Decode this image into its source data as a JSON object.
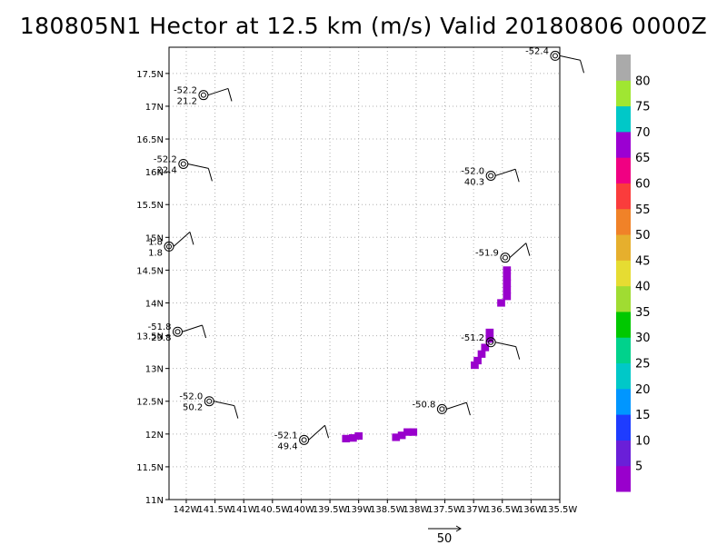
{
  "chart_data": {
    "type": "scatter",
    "title": "180805N1 Hector at 12.5 km (m/s) Valid 20180806 0000Z",
    "xlim": [
      -142.3,
      -135.5
    ],
    "ylim": [
      11.0,
      17.9
    ],
    "x_ticks": [
      -142,
      -141.5,
      -141,
      -140.5,
      -140,
      -139.5,
      -139,
      -138.5,
      -138,
      -137.5,
      -137,
      -136.5,
      -136,
      -135.5
    ],
    "x_tick_labels": [
      "142W",
      "141.5W",
      "141W",
      "140.5W",
      "140W",
      "139.5W",
      "139W",
      "138.5W",
      "138W",
      "137.5W",
      "137W",
      "136.5W",
      "136W",
      "135.5W"
    ],
    "y_ticks": [
      11,
      11.5,
      12,
      12.5,
      13,
      13.5,
      14,
      14.5,
      15,
      15.5,
      16,
      16.5,
      17,
      17.5
    ],
    "y_tick_labels": [
      "11N",
      "11.5N",
      "12N",
      "12.5N",
      "13N",
      "13.5N",
      "14N",
      "14.5N",
      "15N",
      "15.5N",
      "16N",
      "16.5N",
      "17N",
      "17.5N"
    ],
    "grid": true,
    "colorbar": {
      "labels": [
        "5",
        "10",
        "15",
        "20",
        "25",
        "30",
        "35",
        "40",
        "45",
        "50",
        "55",
        "60",
        "65",
        "70",
        "75",
        "80"
      ],
      "colors": [
        "#9900cc",
        "#6a1fd8",
        "#1e3cff",
        "#0096ff",
        "#00c8c8",
        "#00d28c",
        "#00c800",
        "#a0dc32",
        "#e6dc32",
        "#e6af2d",
        "#f08228",
        "#fa3c3c",
        "#f00082",
        "#9b00d2",
        "#00c8c8",
        "#a0e632",
        "#aaaaaa"
      ]
    },
    "stations": [
      {
        "lon": -141.7,
        "lat": 17.17,
        "temp": "-52.2",
        "wind": "21.2"
      },
      {
        "lon": -142.05,
        "lat": 16.12,
        "temp": "-52.2",
        "wind": "22.4"
      },
      {
        "lon": -142.3,
        "lat": 14.86,
        "temp": "1.8",
        "wind": "1.8"
      },
      {
        "lon": -142.15,
        "lat": 13.56,
        "temp": "-51.8",
        "wind": "29.8"
      },
      {
        "lon": -141.6,
        "lat": 12.5,
        "temp": "-52.0",
        "wind": "50.2"
      },
      {
        "lon": -139.95,
        "lat": 11.91,
        "temp": "-52.1",
        "wind": "49.4"
      },
      {
        "lon": -137.55,
        "lat": 12.38,
        "temp": "-50.8",
        "wind": ""
      },
      {
        "lon": -136.7,
        "lat": 13.4,
        "temp": "-51.2",
        "wind": ""
      },
      {
        "lon": -136.45,
        "lat": 14.69,
        "temp": "-51.9",
        "wind": ""
      },
      {
        "lon": -136.7,
        "lat": 15.94,
        "temp": "-52.0",
        "wind": "40.3"
      },
      {
        "lon": -135.58,
        "lat": 17.77,
        "temp": "-52.4",
        "wind": ""
      }
    ],
    "shaded_points": [
      {
        "lon": -136.42,
        "lat": 14.5
      },
      {
        "lon": -136.42,
        "lat": 14.4
      },
      {
        "lon": -136.42,
        "lat": 14.3
      },
      {
        "lon": -136.42,
        "lat": 14.2
      },
      {
        "lon": -136.42,
        "lat": 14.1
      },
      {
        "lon": -136.52,
        "lat": 14.0
      },
      {
        "lon": -136.72,
        "lat": 13.55
      },
      {
        "lon": -136.72,
        "lat": 13.45
      },
      {
        "lon": -136.8,
        "lat": 13.32
      },
      {
        "lon": -136.86,
        "lat": 13.22
      },
      {
        "lon": -136.93,
        "lat": 13.12
      },
      {
        "lon": -136.98,
        "lat": 13.05
      },
      {
        "lon": -138.05,
        "lat": 12.03
      },
      {
        "lon": -138.15,
        "lat": 12.03
      },
      {
        "lon": -138.25,
        "lat": 11.98
      },
      {
        "lon": -138.35,
        "lat": 11.95
      },
      {
        "lon": -139.0,
        "lat": 11.97
      },
      {
        "lon": -139.1,
        "lat": 11.94
      },
      {
        "lon": -139.22,
        "lat": 11.93
      }
    ],
    "reference_vector": {
      "label": "50"
    }
  }
}
